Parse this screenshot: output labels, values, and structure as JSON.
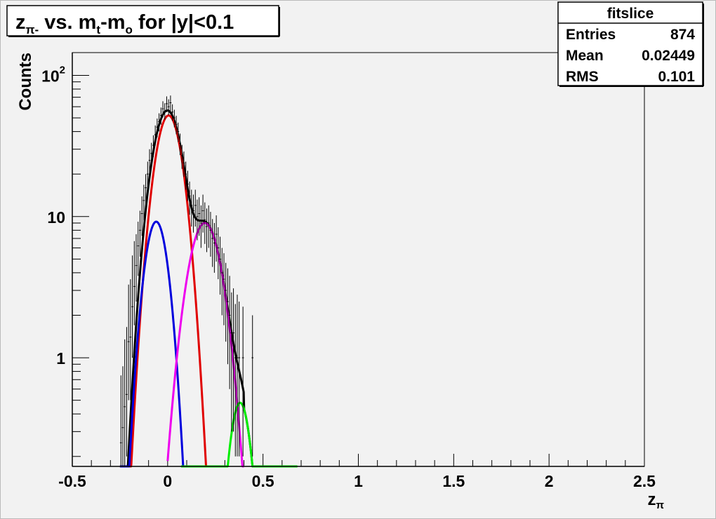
{
  "chart_data": {
    "type": "line",
    "title": {
      "prefix": "z",
      "sub1": "π-",
      "mid1": " vs. m",
      "sub2": "t",
      "mid2": "-m",
      "sub3": "o",
      "suffix": " for |y|<0.1"
    },
    "xlabel": {
      "main": "z",
      "sub": "π"
    },
    "ylabel": "Counts",
    "xscale": "linear",
    "yscale": "log",
    "xlim": [
      -0.5,
      2.5
    ],
    "ylim": [
      0.17,
      145
    ],
    "grid": false,
    "x_ticks": [
      -0.5,
      0,
      0.5,
      1,
      1.5,
      2,
      2.5
    ],
    "x_tick_labels": [
      "-0.5",
      "0",
      "0.5",
      "1",
      "1.5",
      "2",
      "2.5"
    ],
    "y_ticks": [
      1,
      10,
      100
    ],
    "y_tick_labels": [
      {
        "base": "1",
        "exp": ""
      },
      {
        "base": "10",
        "exp": ""
      },
      {
        "base": "10",
        "exp": "2"
      }
    ],
    "stats_box": {
      "title": "fitslice",
      "rows": [
        {
          "label": "Entries",
          "value": "874"
        },
        {
          "label": "Mean",
          "value": "0.02449"
        },
        {
          "label": "RMS",
          "value": "0.101"
        }
      ]
    },
    "series": [
      {
        "color": "#000000",
        "components": "sum"
      },
      {
        "color": "#e00000",
        "amp": 52,
        "mu": 0.005,
        "sigma": 0.058,
        "xmin": -0.25,
        "xmax": 0.255
      },
      {
        "color": "#0000dd",
        "amp": 9.2,
        "mu": -0.06,
        "sigma": 0.05,
        "xmin": -0.25,
        "xmax": 0.15
      },
      {
        "color": "#ee00ee",
        "amp": 9.0,
        "mu": 0.195,
        "sigma": 0.07,
        "xmin": 0.0,
        "xmax": 0.4
      },
      {
        "color": "#00ee00",
        "amp": 0.48,
        "mu": 0.38,
        "sigma": 0.045,
        "xmin": 0.07,
        "xmax": 0.68
      }
    ],
    "data_points": [
      {
        "x": -0.245,
        "y": 0.25,
        "el": 0.2,
        "eh": 0.5
      },
      {
        "x": -0.235,
        "y": 0.32,
        "el": 0.25,
        "eh": 0.55
      },
      {
        "x": -0.225,
        "y": 0.45,
        "el": 0.3,
        "eh": 0.9
      },
      {
        "x": -0.215,
        "y": 0.55,
        "el": 0.35,
        "eh": 1.1
      },
      {
        "x": -0.205,
        "y": 1.3,
        "el": 0.8,
        "eh": 2.0
      },
      {
        "x": -0.195,
        "y": 1.4,
        "el": 0.9,
        "eh": 2.2
      },
      {
        "x": -0.185,
        "y": 2.3,
        "el": 1.3,
        "eh": 3.0
      },
      {
        "x": -0.175,
        "y": 3.2,
        "el": 1.5,
        "eh": 3.5
      },
      {
        "x": -0.165,
        "y": 4.5,
        "el": 2.0,
        "eh": 3.0
      },
      {
        "x": -0.155,
        "y": 6.2,
        "el": 2.4,
        "eh": 3.0
      },
      {
        "x": -0.145,
        "y": 8.0,
        "el": 2.8,
        "eh": 3.0
      },
      {
        "x": -0.135,
        "y": 10.5,
        "el": 3.2,
        "eh": 3.4
      },
      {
        "x": -0.125,
        "y": 13,
        "el": 3.6,
        "eh": 3.8
      },
      {
        "x": -0.115,
        "y": 16,
        "el": 4.0,
        "eh": 4.0
      },
      {
        "x": -0.105,
        "y": 20,
        "el": 4.5,
        "eh": 4.5
      },
      {
        "x": -0.095,
        "y": 25,
        "el": 5.0,
        "eh": 5.0
      },
      {
        "x": -0.085,
        "y": 28,
        "el": 5.3,
        "eh": 5.3
      },
      {
        "x": -0.075,
        "y": 32,
        "el": 5.6,
        "eh": 5.6
      },
      {
        "x": -0.065,
        "y": 38,
        "el": 6.2,
        "eh": 6.2
      },
      {
        "x": -0.055,
        "y": 43,
        "el": 6.5,
        "eh": 6.5
      },
      {
        "x": -0.045,
        "y": 47,
        "el": 6.9,
        "eh": 6.9
      },
      {
        "x": -0.035,
        "y": 52,
        "el": 7.2,
        "eh": 7.2
      },
      {
        "x": -0.025,
        "y": 58,
        "el": 7.6,
        "eh": 7.6
      },
      {
        "x": -0.015,
        "y": 56,
        "el": 7.5,
        "eh": 7.5
      },
      {
        "x": -0.005,
        "y": 63,
        "el": 8.0,
        "eh": 8.0
      },
      {
        "x": 0.005,
        "y": 60,
        "el": 7.7,
        "eh": 7.7
      },
      {
        "x": 0.015,
        "y": 64,
        "el": 8.0,
        "eh": 8.0
      },
      {
        "x": 0.025,
        "y": 55,
        "el": 7.4,
        "eh": 7.4
      },
      {
        "x": 0.035,
        "y": 50,
        "el": 7.1,
        "eh": 7.1
      },
      {
        "x": 0.045,
        "y": 45,
        "el": 6.7,
        "eh": 6.7
      },
      {
        "x": 0.055,
        "y": 40,
        "el": 6.3,
        "eh": 6.3
      },
      {
        "x": 0.065,
        "y": 33,
        "el": 5.7,
        "eh": 5.7
      },
      {
        "x": 0.075,
        "y": 27,
        "el": 5.2,
        "eh": 5.2
      },
      {
        "x": 0.085,
        "y": 24,
        "el": 4.9,
        "eh": 4.9
      },
      {
        "x": 0.095,
        "y": 20,
        "el": 4.5,
        "eh": 4.5
      },
      {
        "x": 0.105,
        "y": 17,
        "el": 4.1,
        "eh": 4.1
      },
      {
        "x": 0.115,
        "y": 14,
        "el": 3.7,
        "eh": 3.7
      },
      {
        "x": 0.125,
        "y": 12,
        "el": 3.5,
        "eh": 3.5
      },
      {
        "x": 0.135,
        "y": 11,
        "el": 3.3,
        "eh": 3.3
      },
      {
        "x": 0.145,
        "y": 12,
        "el": 3.5,
        "eh": 3.5
      },
      {
        "x": 0.155,
        "y": 10,
        "el": 3.2,
        "eh": 3.2
      },
      {
        "x": 0.165,
        "y": 10.5,
        "el": 3.2,
        "eh": 3.2
      },
      {
        "x": 0.175,
        "y": 9.0,
        "el": 3.0,
        "eh": 3.0
      },
      {
        "x": 0.185,
        "y": 11,
        "el": 3.3,
        "eh": 3.3
      },
      {
        "x": 0.195,
        "y": 9.5,
        "el": 3.1,
        "eh": 3.1
      },
      {
        "x": 0.205,
        "y": 8.5,
        "el": 2.9,
        "eh": 2.9
      },
      {
        "x": 0.215,
        "y": 9.0,
        "el": 3.0,
        "eh": 3.0
      },
      {
        "x": 0.225,
        "y": 8.0,
        "el": 2.8,
        "eh": 2.8
      },
      {
        "x": 0.235,
        "y": 7.0,
        "el": 2.6,
        "eh": 2.6
      },
      {
        "x": 0.245,
        "y": 6.5,
        "el": 2.5,
        "eh": 2.5
      },
      {
        "x": 0.255,
        "y": 7.5,
        "el": 2.7,
        "eh": 2.7
      },
      {
        "x": 0.265,
        "y": 6.0,
        "el": 2.4,
        "eh": 2.4
      },
      {
        "x": 0.275,
        "y": 5.0,
        "el": 2.2,
        "eh": 2.2
      },
      {
        "x": 0.285,
        "y": 4.0,
        "el": 2.0,
        "eh": 2.0
      },
      {
        "x": 0.295,
        "y": 3.6,
        "el": 1.9,
        "eh": 1.9
      },
      {
        "x": 0.305,
        "y": 3.0,
        "el": 1.7,
        "eh": 1.7
      },
      {
        "x": 0.315,
        "y": 2.5,
        "el": 1.6,
        "eh": 1.8
      },
      {
        "x": 0.325,
        "y": 2.0,
        "el": 1.4,
        "eh": 1.8
      },
      {
        "x": 0.335,
        "y": 1.5,
        "el": 1.2,
        "eh": 1.4
      },
      {
        "x": 0.345,
        "y": 1.5,
        "el": 1.2,
        "eh": 1.6
      },
      {
        "x": 0.355,
        "y": 1.0,
        "el": 0.8,
        "eh": 1.4
      },
      {
        "x": 0.365,
        "y": 1.0,
        "el": 0.8,
        "eh": 1.8
      },
      {
        "x": 0.375,
        "y": 1.0,
        "el": 0.8,
        "eh": 1.5
      },
      {
        "x": 0.395,
        "y": 1.0,
        "el": 0.8,
        "eh": 1.3
      },
      {
        "x": 0.445,
        "y": 1.0,
        "el": 0.8,
        "eh": 1.0
      }
    ]
  }
}
